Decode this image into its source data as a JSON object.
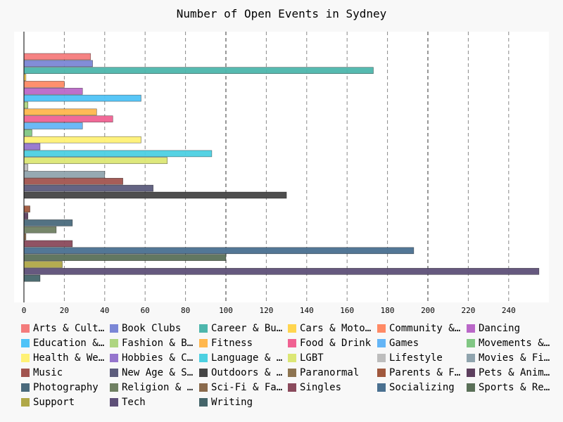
{
  "chart_data": {
    "type": "bar",
    "orientation": "horizontal",
    "title": "Number of Open Events in Sydney",
    "xlabel": "",
    "ylabel": "",
    "xlim": [
      0,
      257
    ],
    "x_ticks": [
      0,
      20,
      40,
      60,
      80,
      100,
      120,
      140,
      160,
      180,
      200,
      220,
      240
    ],
    "grid": "vertical dashed",
    "legend_position": "bottom",
    "series": [
      {
        "name": "Arts & Culture",
        "label": "Arts & Cultu…",
        "value": 33,
        "color": "#f47c7c"
      },
      {
        "name": "Book Clubs",
        "label": "Book Clubs",
        "value": 34,
        "color": "#7b87d6"
      },
      {
        "name": "Career & Business",
        "label": "Career & Bus…",
        "value": 173,
        "color": "#4db6ac"
      },
      {
        "name": "Cars & Motorcycles",
        "label": "Cars & Motor…",
        "value": 1,
        "color": "#ffd54f"
      },
      {
        "name": "Community & Environment",
        "label": "Community & …",
        "value": 20,
        "color": "#ff8a65"
      },
      {
        "name": "Dancing",
        "label": "Dancing",
        "value": 29,
        "color": "#ba68c8"
      },
      {
        "name": "Education & Learning",
        "label": "Education & …",
        "value": 58,
        "color": "#4fc3f7"
      },
      {
        "name": "Fashion & Beauty",
        "label": "Fashion & Be…",
        "value": 2,
        "color": "#aed581"
      },
      {
        "name": "Fitness",
        "label": "Fitness",
        "value": 36,
        "color": "#ffb74d"
      },
      {
        "name": "Food & Drink",
        "label": "Food & Drink",
        "value": 44,
        "color": "#f06292"
      },
      {
        "name": "Games",
        "label": "Games",
        "value": 29,
        "color": "#64b5f6"
      },
      {
        "name": "Movements & Politics",
        "label": "Movements & …",
        "value": 4,
        "color": "#81c784"
      },
      {
        "name": "Health & Wellbeing",
        "label": "Health & Wel…",
        "value": 58,
        "color": "#fff176"
      },
      {
        "name": "Hobbies & Crafts",
        "label": "Hobbies & Cr…",
        "value": 8,
        "color": "#9575cd"
      },
      {
        "name": "Language & Ethnic Identity",
        "label": "Language & E…",
        "value": 93,
        "color": "#4dd0e1"
      },
      {
        "name": "LGBT",
        "label": "LGBT",
        "value": 71,
        "color": "#dce775"
      },
      {
        "name": "Lifestyle",
        "label": "Lifestyle",
        "value": 2,
        "color": "#bdbdbd"
      },
      {
        "name": "Movies & Film",
        "label": "Movies & Film",
        "value": 40,
        "color": "#90a4ae"
      },
      {
        "name": "Music",
        "label": "Music",
        "value": 49,
        "color": "#a1544f"
      },
      {
        "name": "New Age & Spirituality",
        "label": "New Age & Sp…",
        "value": 64,
        "color": "#5c5c7c"
      },
      {
        "name": "Outdoors & Adventure",
        "label": "Outdoors & A…",
        "value": 130,
        "color": "#454545"
      },
      {
        "name": "Paranormal",
        "label": "Paranormal",
        "value": 0,
        "color": "#8d7450"
      },
      {
        "name": "Parents & Family",
        "label": "Parents & Fa…",
        "value": 3,
        "color": "#a0583d"
      },
      {
        "name": "Pets & Animals",
        "label": "Pets & Anima…",
        "value": 2,
        "color": "#5d3f5e"
      },
      {
        "name": "Photography",
        "label": "Photography",
        "value": 24,
        "color": "#4a6a7c"
      },
      {
        "name": "Religion & Beliefs",
        "label": "Religion & B…",
        "value": 16,
        "color": "#6f8062"
      },
      {
        "name": "Sci-Fi & Fantasy",
        "label": "Sci-Fi & Fan…",
        "value": 1,
        "color": "#8a6a4c"
      },
      {
        "name": "Singles",
        "label": "Singles",
        "value": 24,
        "color": "#8a4a5c"
      },
      {
        "name": "Socializing",
        "label": "Socializing",
        "value": 193,
        "color": "#4a7090"
      },
      {
        "name": "Sports & Recreation",
        "label": "Sports & Rec…",
        "value": 100,
        "color": "#5a7058"
      },
      {
        "name": "Support",
        "label": "Support",
        "value": 19,
        "color": "#b0a848"
      },
      {
        "name": "Tech",
        "label": "Tech",
        "value": 255,
        "color": "#5e5078"
      },
      {
        "name": "Writing",
        "label": "Writing",
        "value": 8,
        "color": "#45656a"
      }
    ]
  }
}
